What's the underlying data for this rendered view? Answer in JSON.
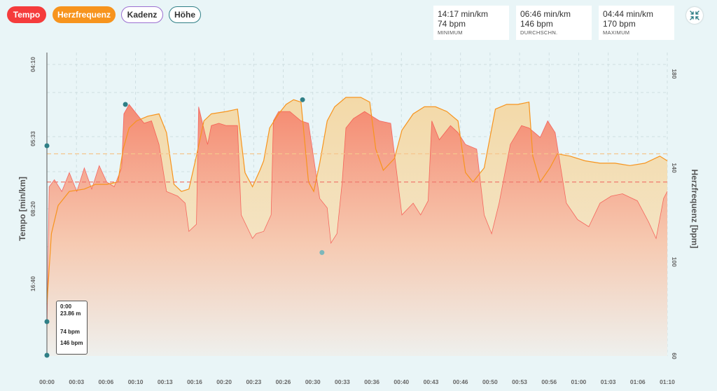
{
  "filters": {
    "tempo": "Tempo",
    "heart_rate": "Herzfrequenz",
    "cadence": "Kadenz",
    "altitude": "Höhe"
  },
  "stats": [
    {
      "pace": "14:17 min/km",
      "bpm": "74 bpm",
      "label": "MINIMUM"
    },
    {
      "pace": "06:46 min/km",
      "bpm": "146 bpm",
      "label": "DURCHSCHN."
    },
    {
      "pace": "04:44 min/km",
      "bpm": "170 bpm",
      "label": "MAXIMUM"
    }
  ],
  "tooltip": {
    "time": "0:00",
    "distance": "23.86 m",
    "hr_min": "74 bpm",
    "hr_avg": "146 bpm"
  },
  "colors": {
    "tempo": "#f53c3c",
    "heart_rate": "#f7941d",
    "cadence": "#9b6fd1",
    "altitude": "#2f7f86"
  },
  "icons": {
    "collapse": "collapse-arrows-icon"
  },
  "chart_data": {
    "type": "area",
    "xlabel": "",
    "x_tick_labels": [
      "00:00",
      "00:03",
      "00:06",
      "00:10",
      "00:13",
      "00:16",
      "00:20",
      "00:23",
      "00:26",
      "00:30",
      "00:33",
      "00:36",
      "00:40",
      "00:43",
      "00:46",
      "00:50",
      "00:53",
      "00:56",
      "01:00",
      "01:03",
      "01:06",
      "01:10"
    ],
    "xlim_minutes": [
      0,
      70
    ],
    "ylabel_left": "Tempo [min/km]",
    "left_tick_labels": [
      "04:10",
      "05:33",
      "08:20",
      "16:40"
    ],
    "ylabel_right": "Herzfrequenz [bpm]",
    "right_ticks": [
      180,
      140,
      100,
      60
    ],
    "ylim_right": [
      60,
      184
    ],
    "grid": true,
    "avg_pace_line": "06:46",
    "avg_hr_line": 146,
    "series": [
      {
        "name": "Herzfrequenz",
        "unit": "bpm",
        "points": [
          [
            0,
            82
          ],
          [
            0.6,
            112
          ],
          [
            1.5,
            124
          ],
          [
            3,
            130
          ],
          [
            5,
            131
          ],
          [
            6.5,
            133
          ],
          [
            8,
            133
          ],
          [
            9.5,
            134
          ],
          [
            10.2,
            148
          ],
          [
            11,
            157
          ],
          [
            12,
            160
          ],
          [
            13.5,
            162
          ],
          [
            15,
            163
          ],
          [
            16,
            155
          ],
          [
            17,
            133
          ],
          [
            18,
            130
          ],
          [
            19,
            131
          ],
          [
            20,
            145
          ],
          [
            21,
            160
          ],
          [
            22,
            163
          ],
          [
            24,
            164
          ],
          [
            25.5,
            165
          ],
          [
            26.5,
            138
          ],
          [
            27.5,
            132
          ],
          [
            28.5,
            139
          ],
          [
            29,
            143
          ],
          [
            29.8,
            157
          ],
          [
            31,
            163
          ],
          [
            32,
            167
          ],
          [
            33,
            169
          ],
          [
            34,
            168
          ],
          [
            35,
            134
          ],
          [
            35.7,
            130
          ],
          [
            36.5,
            142
          ],
          [
            37.5,
            160
          ],
          [
            38.5,
            166
          ],
          [
            40,
            170
          ],
          [
            42,
            170
          ],
          [
            43.2,
            168
          ],
          [
            44,
            148
          ],
          [
            45,
            139
          ],
          [
            46.5,
            144
          ],
          [
            47.5,
            156
          ],
          [
            49,
            163
          ],
          [
            50.5,
            166
          ],
          [
            52,
            166
          ],
          [
            53.5,
            164
          ],
          [
            55,
            160
          ],
          [
            56,
            138
          ],
          [
            57,
            134
          ],
          [
            58.5,
            140
          ],
          [
            60,
            165
          ],
          [
            61.5,
            167
          ],
          [
            63,
            167
          ],
          [
            64.5,
            168
          ],
          [
            65,
            145
          ],
          [
            66,
            134
          ],
          [
            67.3,
            140
          ],
          [
            68.3,
            146
          ],
          [
            70,
            145
          ],
          [
            72,
            143
          ],
          [
            74,
            142
          ],
          [
            76,
            142
          ],
          [
            78,
            141
          ],
          [
            80,
            142
          ],
          [
            82,
            145
          ],
          [
            83,
            143
          ]
        ]
      },
      {
        "name": "Tempo",
        "unit": "min/km",
        "points": [
          [
            0,
            70
          ],
          [
            0.3,
            132
          ],
          [
            1,
            135
          ],
          [
            2,
            130
          ],
          [
            3,
            138
          ],
          [
            4,
            130
          ],
          [
            5,
            140
          ],
          [
            6,
            131
          ],
          [
            7,
            141
          ],
          [
            8,
            134
          ],
          [
            9,
            132
          ],
          [
            10,
            140
          ],
          [
            10.3,
            163
          ],
          [
            11,
            167
          ],
          [
            12,
            163
          ],
          [
            13,
            159
          ],
          [
            14,
            160
          ],
          [
            15,
            150
          ],
          [
            16,
            130
          ],
          [
            17.5,
            128
          ],
          [
            18.5,
            125
          ],
          [
            19,
            113
          ],
          [
            20,
            116
          ],
          [
            20.3,
            166
          ],
          [
            21.5,
            150
          ],
          [
            22,
            158
          ],
          [
            23,
            159
          ],
          [
            24,
            158
          ],
          [
            25.5,
            158
          ],
          [
            26,
            120
          ],
          [
            27.5,
            110
          ],
          [
            28,
            112
          ],
          [
            29,
            113
          ],
          [
            30,
            120
          ],
          [
            30.3,
            160
          ],
          [
            31,
            164
          ],
          [
            32.5,
            164
          ],
          [
            34,
            160
          ],
          [
            35,
            159
          ],
          [
            36.5,
            127
          ],
          [
            37.5,
            123
          ],
          [
            38,
            108
          ],
          [
            38.8,
            112
          ],
          [
            39.5,
            134
          ],
          [
            40,
            157
          ],
          [
            41,
            161
          ],
          [
            42.5,
            164
          ],
          [
            43.5,
            162
          ],
          [
            44.5,
            160
          ],
          [
            46,
            159
          ],
          [
            47.5,
            120
          ],
          [
            49,
            125
          ],
          [
            50,
            120
          ],
          [
            51,
            126
          ],
          [
            51.5,
            160
          ],
          [
            52.5,
            152
          ],
          [
            54,
            158
          ],
          [
            55,
            155
          ],
          [
            56,
            150
          ],
          [
            57.5,
            148
          ],
          [
            58.5,
            120
          ],
          [
            59.5,
            112
          ],
          [
            60.5,
            125
          ],
          [
            62,
            150
          ],
          [
            63.5,
            158
          ],
          [
            64.5,
            157
          ],
          [
            66,
            153
          ],
          [
            67,
            160
          ],
          [
            68,
            155
          ],
          [
            69.5,
            125
          ],
          [
            71,
            118
          ],
          [
            72.5,
            115
          ],
          [
            74,
            125
          ],
          [
            75.5,
            128
          ],
          [
            77,
            129
          ],
          [
            79,
            126
          ],
          [
            80.5,
            117
          ],
          [
            81.5,
            110
          ],
          [
            82.5,
            127
          ],
          [
            83,
            130
          ]
        ]
      }
    ],
    "markers": [
      {
        "series": "Tempo",
        "x": 10.5,
        "y": 167
      },
      {
        "series": "Herzfrequenz",
        "x": 34.2,
        "y": 169
      },
      {
        "series": "Tempo",
        "x": 36.8,
        "y": 104
      }
    ]
  }
}
